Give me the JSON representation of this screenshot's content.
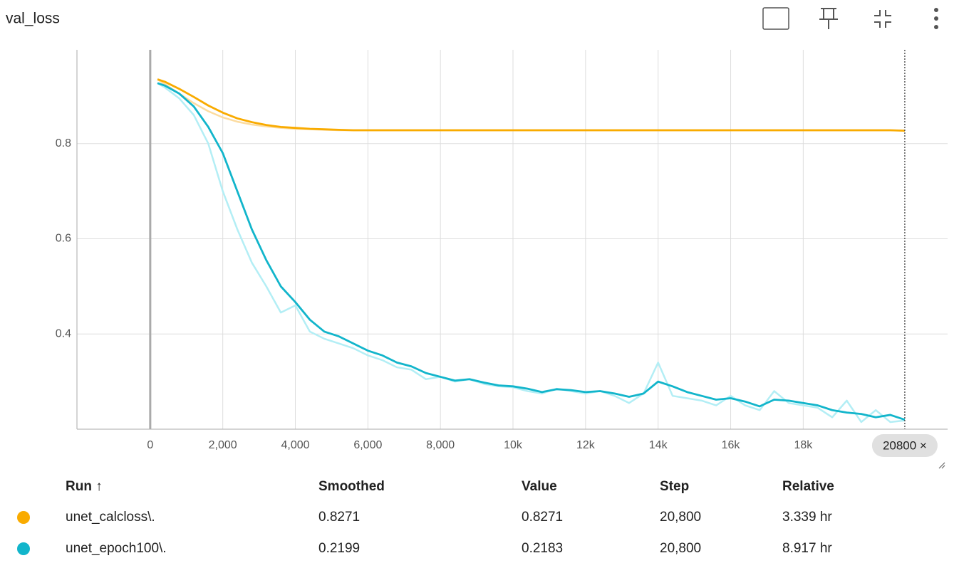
{
  "chart_data": {
    "type": "line",
    "title": "val_loss",
    "x": [
      200,
      400,
      800,
      1200,
      1600,
      2000,
      2400,
      2800,
      3200,
      3600,
      4000,
      4400,
      4800,
      5200,
      5600,
      6000,
      6400,
      6800,
      7200,
      7600,
      8000,
      8400,
      8800,
      9200,
      9600,
      10000,
      10400,
      10800,
      11200,
      11600,
      12000,
      12400,
      12800,
      13200,
      13600,
      14000,
      14400,
      14800,
      15200,
      15600,
      16000,
      16400,
      16800,
      17200,
      17600,
      18000,
      18400,
      18800,
      19200,
      19600,
      20000,
      20400,
      20800
    ],
    "series": [
      {
        "name": "unet_calcloss\\.",
        "color": "#f9ab00",
        "raw_color": "#fcdca0",
        "smoothed": [
          0.935,
          0.93,
          0.915,
          0.898,
          0.88,
          0.865,
          0.853,
          0.845,
          0.839,
          0.835,
          0.833,
          0.831,
          0.83,
          0.829,
          0.828,
          0.828,
          0.828,
          0.828,
          0.828,
          0.828,
          0.828,
          0.828,
          0.828,
          0.828,
          0.828,
          0.828,
          0.828,
          0.828,
          0.828,
          0.828,
          0.828,
          0.828,
          0.828,
          0.828,
          0.828,
          0.828,
          0.828,
          0.828,
          0.828,
          0.828,
          0.828,
          0.828,
          0.828,
          0.828,
          0.828,
          0.828,
          0.828,
          0.828,
          0.828,
          0.828,
          0.828,
          0.828,
          0.8271
        ],
        "values": [
          0.935,
          0.925,
          0.905,
          0.885,
          0.868,
          0.855,
          0.846,
          0.84,
          0.836,
          0.833,
          0.831,
          0.83,
          0.829,
          0.828,
          0.828,
          0.828,
          0.828,
          0.828,
          0.828,
          0.828,
          0.828,
          0.828,
          0.828,
          0.828,
          0.828,
          0.828,
          0.828,
          0.828,
          0.828,
          0.828,
          0.828,
          0.828,
          0.828,
          0.828,
          0.828,
          0.828,
          0.828,
          0.828,
          0.828,
          0.828,
          0.828,
          0.828,
          0.828,
          0.828,
          0.828,
          0.828,
          0.828,
          0.828,
          0.828,
          0.828,
          0.828,
          0.828,
          0.8271
        ]
      },
      {
        "name": "unet_epoch100\\.",
        "color": "#12b5cb",
        "raw_color": "#b3eef5",
        "smoothed": [
          0.927,
          0.922,
          0.905,
          0.878,
          0.835,
          0.78,
          0.7,
          0.62,
          0.555,
          0.5,
          0.467,
          0.43,
          0.405,
          0.395,
          0.38,
          0.365,
          0.355,
          0.34,
          0.332,
          0.318,
          0.31,
          0.302,
          0.305,
          0.298,
          0.292,
          0.29,
          0.285,
          0.278,
          0.284,
          0.282,
          0.278,
          0.28,
          0.275,
          0.268,
          0.275,
          0.3,
          0.29,
          0.278,
          0.27,
          0.262,
          0.265,
          0.258,
          0.248,
          0.262,
          0.26,
          0.255,
          0.25,
          0.24,
          0.235,
          0.232,
          0.225,
          0.23,
          0.2199
        ],
        "values": [
          0.927,
          0.918,
          0.895,
          0.86,
          0.8,
          0.7,
          0.62,
          0.55,
          0.5,
          0.445,
          0.46,
          0.405,
          0.39,
          0.38,
          0.37,
          0.355,
          0.345,
          0.33,
          0.325,
          0.305,
          0.31,
          0.3,
          0.305,
          0.295,
          0.29,
          0.288,
          0.28,
          0.275,
          0.285,
          0.28,
          0.275,
          0.28,
          0.27,
          0.255,
          0.275,
          0.34,
          0.27,
          0.265,
          0.26,
          0.25,
          0.27,
          0.25,
          0.24,
          0.28,
          0.255,
          0.25,
          0.245,
          0.225,
          0.26,
          0.215,
          0.24,
          0.215,
          0.2183
        ]
      }
    ],
    "xlim": [
      -2020,
      21980
    ],
    "ylim": [
      0.2,
      0.997
    ],
    "xticks": [
      0,
      {
        "value": 2000,
        "label": "2,000"
      },
      {
        "value": 4000,
        "label": "4,000"
      },
      {
        "value": 6000,
        "label": "6,000"
      },
      {
        "value": 8000,
        "label": "8,000"
      },
      {
        "value": 10000,
        "label": "10k"
      },
      {
        "value": 12000,
        "label": "12k"
      },
      {
        "value": 14000,
        "label": "14k"
      },
      {
        "value": 16000,
        "label": "16k"
      },
      {
        "value": 18000,
        "label": "18k"
      }
    ],
    "yticks": [
      0.4,
      0.6,
      0.8
    ],
    "grid": true,
    "cursor": {
      "value": 20800,
      "label": "20800 ×"
    }
  },
  "table": {
    "header": [
      "Run ↑",
      "Smoothed",
      "Value",
      "Step",
      "Relative"
    ],
    "rows": [
      [
        "unet_calcloss\\.",
        "0.8271",
        "0.8271",
        "20,800",
        "3.339 hr"
      ],
      [
        "unet_epoch100\\.",
        "0.2199",
        "0.2183",
        "20,800",
        "8.917 hr"
      ]
    ]
  }
}
